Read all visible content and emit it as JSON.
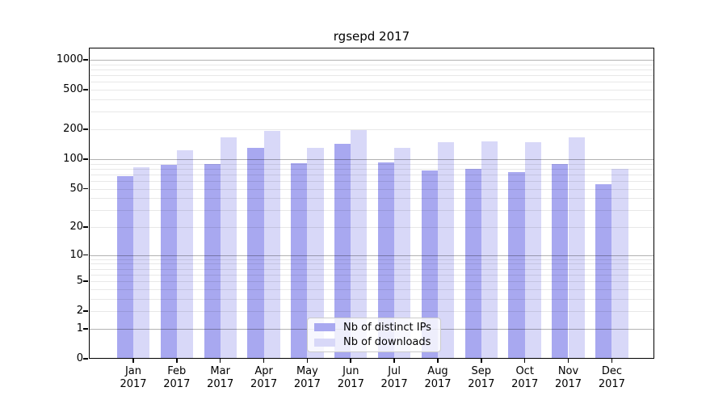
{
  "figure": {
    "background": "#ffffff"
  },
  "chart_data": {
    "type": "bar",
    "title": "rgsepd 2017",
    "x_tick_months": [
      "Jan",
      "Feb",
      "Mar",
      "Apr",
      "May",
      "Jun",
      "Jul",
      "Aug",
      "Sep",
      "Oct",
      "Nov",
      "Dec"
    ],
    "x_tick_year": "2017",
    "yscale": "log1p",
    "yticks": [
      0,
      1,
      2,
      5,
      10,
      20,
      50,
      100,
      200,
      500,
      1000
    ],
    "minor_gridline_values": [
      3,
      4,
      6,
      7,
      8,
      9,
      30,
      40,
      60,
      70,
      80,
      90,
      300,
      400,
      600,
      700,
      800,
      900
    ],
    "ylim": [
      0,
      1325
    ],
    "grid": "on",
    "legend_position": "lower-center",
    "series": [
      {
        "name": "Nb of distinct IPs",
        "color": "#a8a8f0",
        "values": [
          67,
          87,
          89,
          129,
          91,
          144,
          93,
          76,
          79,
          74,
          89,
          56
        ]
      },
      {
        "name": "Nb of downloads",
        "color": "#d8d8f8",
        "values": [
          83,
          123,
          166,
          193,
          129,
          197,
          131,
          148,
          152,
          147,
          166,
          80
        ]
      }
    ]
  }
}
